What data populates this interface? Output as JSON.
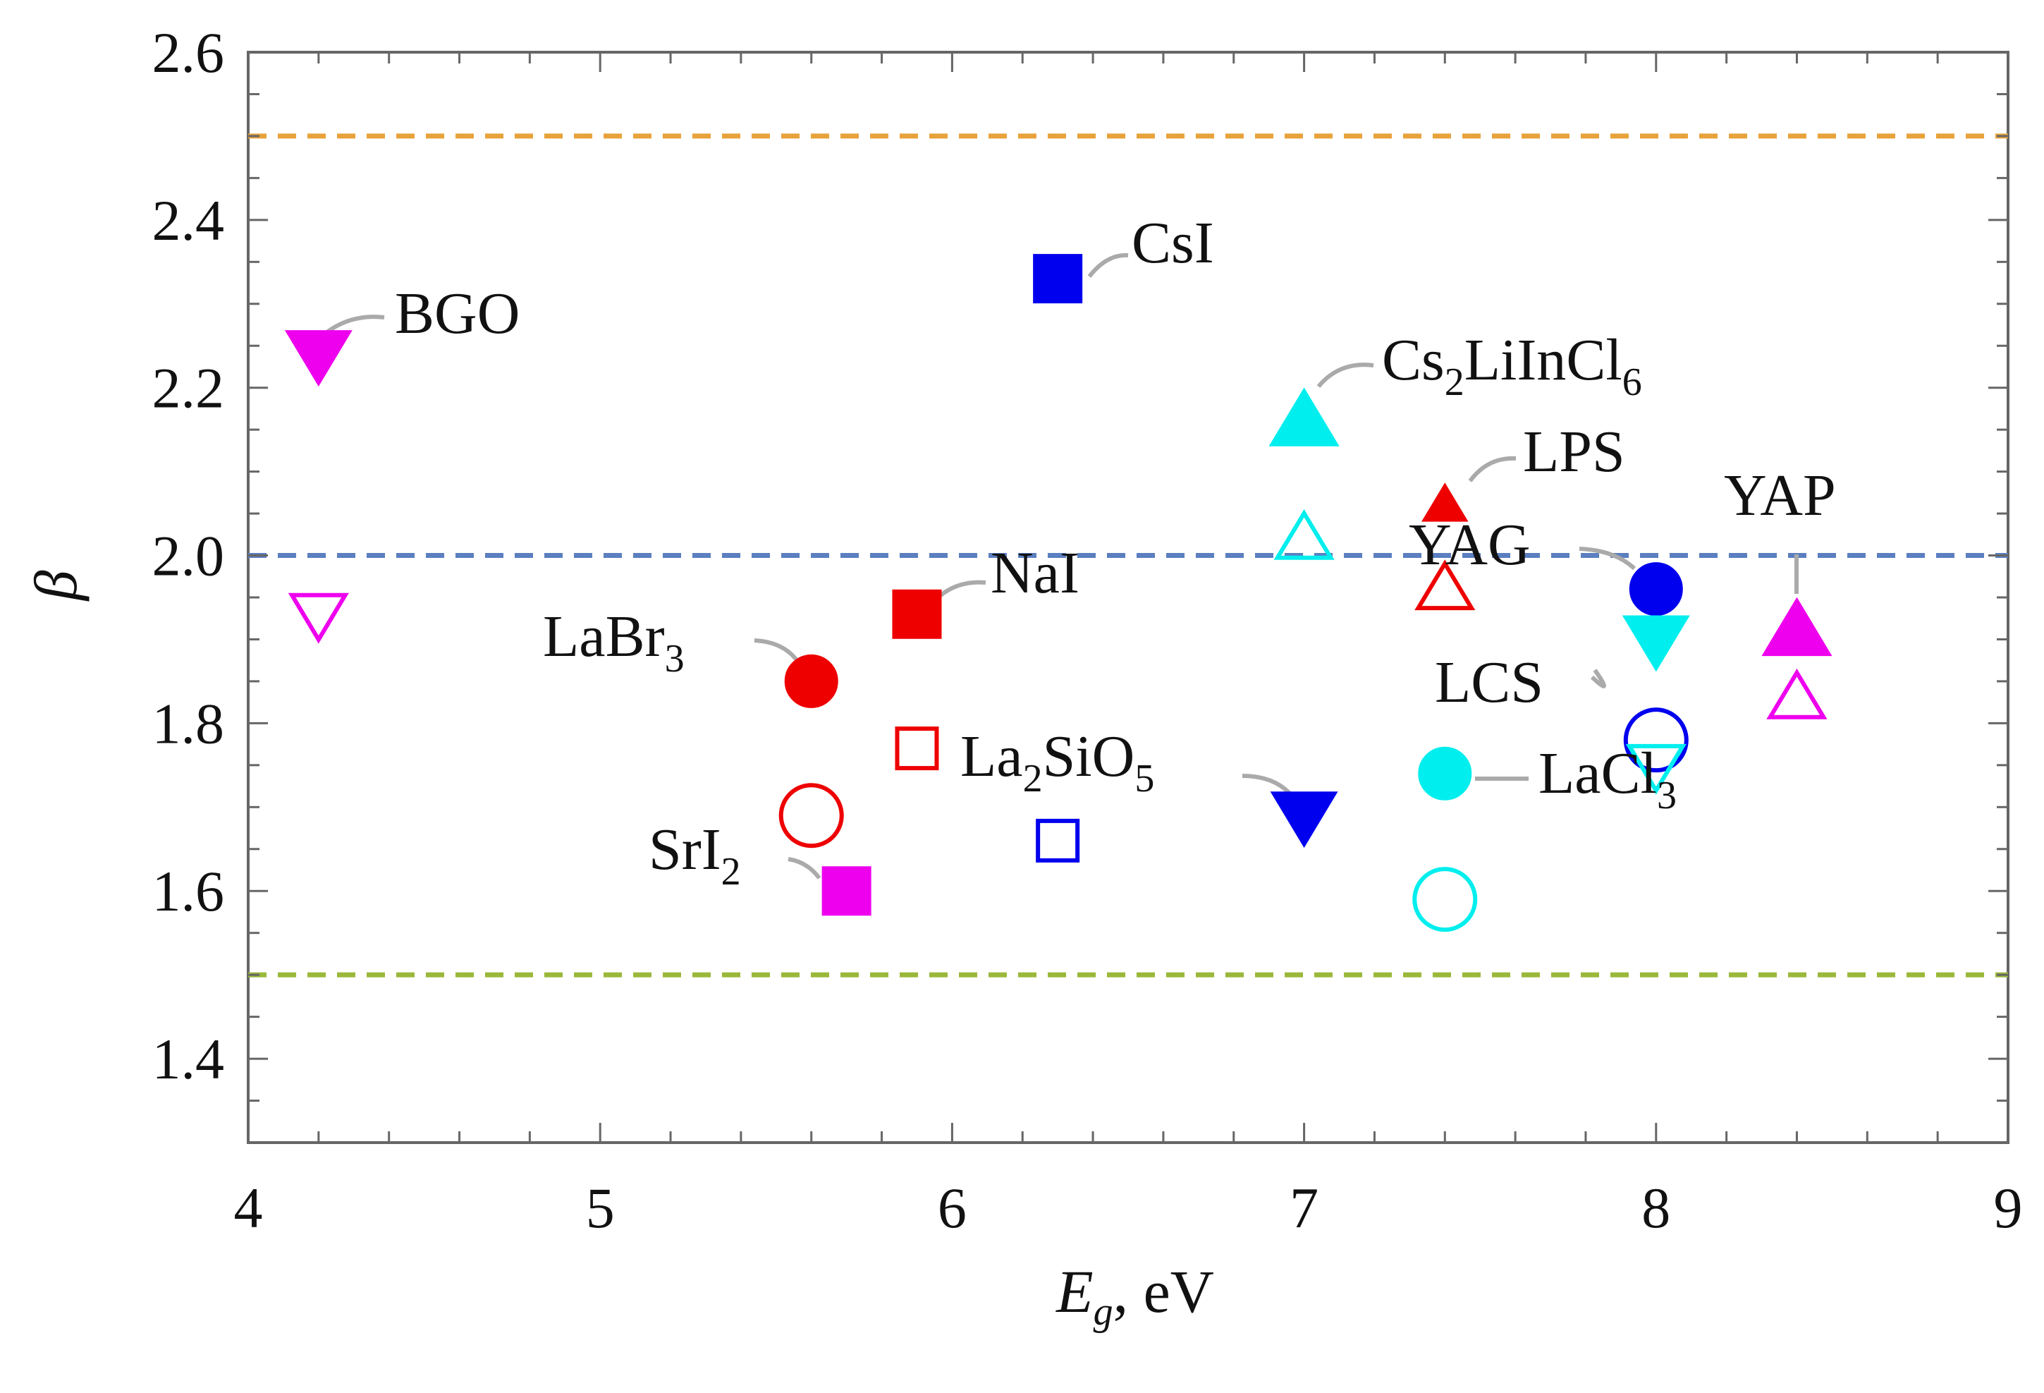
{
  "chart_data": {
    "type": "scatter",
    "title": "",
    "xlabel_main": "E",
    "xlabel_sub": "g",
    "xlabel_rest": ", eV",
    "ylabel": "β",
    "xlim": [
      4,
      9
    ],
    "ylim": [
      1.3,
      2.6
    ],
    "x_ticks": [
      "4",
      "5",
      "6",
      "7",
      "8",
      "9"
    ],
    "y_ticks": [
      "1.4",
      "1.6",
      "1.8",
      "2.0",
      "2.2",
      "2.4",
      "2.6"
    ],
    "reference_lines": [
      {
        "y": 2.5,
        "color": "#e8a23a",
        "style": "dashed"
      },
      {
        "y": 2.0,
        "color": "#5b7fc0",
        "style": "dashed"
      },
      {
        "y": 1.5,
        "color": "#9ab83a",
        "style": "dashed"
      }
    ],
    "points": [
      {
        "name": "BGO-filled",
        "x": 4.2,
        "y": 2.24,
        "marker": "triangle-down",
        "filled": true,
        "color": "#ee00ee"
      },
      {
        "name": "BGO-open",
        "x": 4.2,
        "y": 1.93,
        "marker": "triangle-down",
        "filled": false,
        "color": "#ee00ee"
      },
      {
        "name": "CsI-filled",
        "x": 6.3,
        "y": 2.33,
        "marker": "square",
        "filled": true,
        "color": "#0000ee"
      },
      {
        "name": "NaI-filled",
        "x": 5.9,
        "y": 1.93,
        "marker": "square",
        "filled": true,
        "color": "#ee0000"
      },
      {
        "name": "NaI-open",
        "x": 5.9,
        "y": 1.77,
        "marker": "square",
        "filled": false,
        "color": "#ee0000"
      },
      {
        "name": "LaBr3-filled",
        "x": 5.6,
        "y": 1.85,
        "marker": "circle",
        "filled": true,
        "color": "#ee0000"
      },
      {
        "name": "LaBr3-open",
        "x": 5.6,
        "y": 1.69,
        "marker": "circle",
        "filled": false,
        "color": "#ee0000"
      },
      {
        "name": "SrI2-filled",
        "x": 5.7,
        "y": 1.6,
        "marker": "square",
        "filled": true,
        "color": "#ee00ee"
      },
      {
        "name": "La2SiO5-open",
        "x": 6.3,
        "y": 1.66,
        "marker": "square",
        "filled": false,
        "color": "#0000ee"
      },
      {
        "name": "La2SiO5-filled",
        "x": 7.0,
        "y": 1.69,
        "marker": "triangle-down",
        "filled": true,
        "color": "#0000ee"
      },
      {
        "name": "Cs2LiInCl6-filled",
        "x": 7.0,
        "y": 2.16,
        "marker": "triangle-up",
        "filled": true,
        "color": "#00eeee"
      },
      {
        "name": "Cs2LiInCl6-open",
        "x": 7.0,
        "y": 2.02,
        "marker": "triangle-up",
        "filled": false,
        "color": "#00eeee"
      },
      {
        "name": "LPS-filled",
        "x": 7.4,
        "y": 2.06,
        "marker": "triangle-up-small",
        "filled": true,
        "color": "#ee0000"
      },
      {
        "name": "LPS-open",
        "x": 7.4,
        "y": 1.96,
        "marker": "triangle-up",
        "filled": false,
        "color": "#ee0000"
      },
      {
        "name": "LaCl3-filled",
        "x": 7.4,
        "y": 1.74,
        "marker": "circle",
        "filled": true,
        "color": "#00eeee"
      },
      {
        "name": "LaCl3-open",
        "x": 7.4,
        "y": 1.59,
        "marker": "circle",
        "filled": false,
        "color": "#00eeee"
      },
      {
        "name": "YAG-filled",
        "x": 8.0,
        "y": 1.96,
        "marker": "circle",
        "filled": true,
        "color": "#0000ee"
      },
      {
        "name": "YAG-open",
        "x": 8.0,
        "y": 1.78,
        "marker": "circle",
        "filled": false,
        "color": "#0000ee"
      },
      {
        "name": "LCS-filled",
        "x": 8.0,
        "y": 1.9,
        "marker": "triangle-down",
        "filled": true,
        "color": "#00eeee"
      },
      {
        "name": "LCS-open",
        "x": 8.0,
        "y": 1.75,
        "marker": "triangle-down",
        "filled": false,
        "color": "#00eeee"
      },
      {
        "name": "YAP-filled",
        "x": 8.4,
        "y": 1.91,
        "marker": "triangle-up",
        "filled": true,
        "color": "#ee00ee"
      },
      {
        "name": "YAP-open",
        "x": 8.4,
        "y": 1.83,
        "marker": "triangle-up",
        "filled": false,
        "color": "#ee00ee"
      }
    ],
    "annotations": [
      {
        "main": "BGO",
        "sub": "",
        "tail": ""
      },
      {
        "main": "CsI",
        "sub": "",
        "tail": ""
      },
      {
        "main": "Cs",
        "sub": "2",
        "tail": "LiInCl",
        "sub2": "6"
      },
      {
        "main": "LPS",
        "sub": "",
        "tail": ""
      },
      {
        "main": "YAG",
        "sub": "",
        "tail": ""
      },
      {
        "main": "YAP",
        "sub": "",
        "tail": ""
      },
      {
        "main": "NaI",
        "sub": "",
        "tail": ""
      },
      {
        "main": "LaBr",
        "sub": "3",
        "tail": ""
      },
      {
        "main": "LCS",
        "sub": "",
        "tail": ""
      },
      {
        "main": "La",
        "sub": "2",
        "tail": "SiO",
        "sub2": "5"
      },
      {
        "main": "LaCl",
        "sub": "3",
        "tail": ""
      },
      {
        "main": "SrI",
        "sub": "2",
        "tail": ""
      }
    ]
  }
}
